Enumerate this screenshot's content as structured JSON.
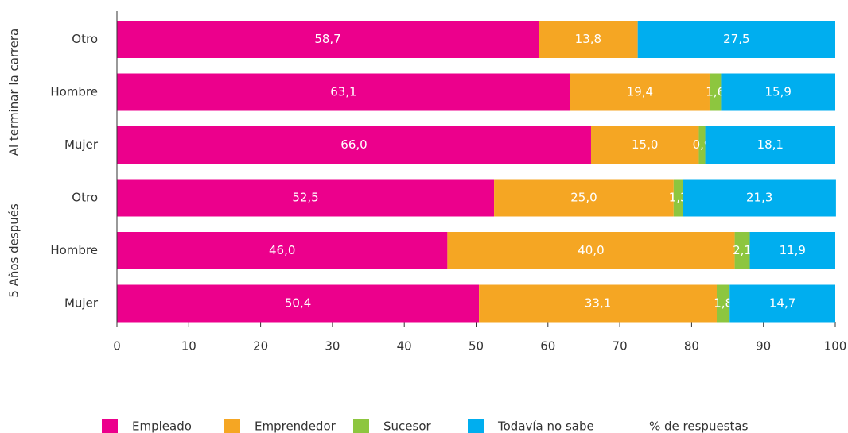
{
  "chart_data": {
    "type": "stacked-barh",
    "categories": [
      "Otro",
      "Hombre",
      "Mujer",
      "Otro",
      "Hombre",
      "Mujer"
    ],
    "groups": [
      "Al terminar la carrera",
      "5 Años después"
    ],
    "series": [
      {
        "name": "Empleado",
        "color": "#ec008c",
        "values": [
          58.7,
          63.1,
          66.0,
          52.5,
          46.0,
          50.4
        ],
        "value_labels": [
          "58,7",
          "63,1",
          "66,0",
          "52,5",
          "46,0",
          "50,4"
        ]
      },
      {
        "name": "Emprendedor",
        "color": "#f5a623",
        "values": [
          13.8,
          19.4,
          15.0,
          25.0,
          40.0,
          33.1
        ],
        "value_labels": [
          "13,8",
          "19,4",
          "15,0",
          "25,0",
          "40,0",
          "33,1"
        ]
      },
      {
        "name": "Sucesor",
        "color": "#8dc63f",
        "values": [
          null,
          1.6,
          0.9,
          1.3,
          2.1,
          1.8
        ],
        "value_labels": [
          null,
          "1,6",
          "0,9",
          "1,3",
          "2,1",
          "1,8"
        ]
      },
      {
        "name": "Todavía no sabe",
        "color": "#00aeef",
        "values": [
          27.5,
          15.9,
          18.1,
          21.3,
          11.9,
          14.7
        ],
        "value_labels": [
          "27,5",
          "15,9",
          "18,1",
          "21,3",
          "11,9",
          "14,7"
        ]
      }
    ],
    "xlabel": "% de respuestas",
    "xlim": [
      0,
      100
    ],
    "xticks": [
      0,
      10,
      20,
      30,
      40,
      50,
      60,
      70,
      80,
      90,
      100
    ]
  }
}
